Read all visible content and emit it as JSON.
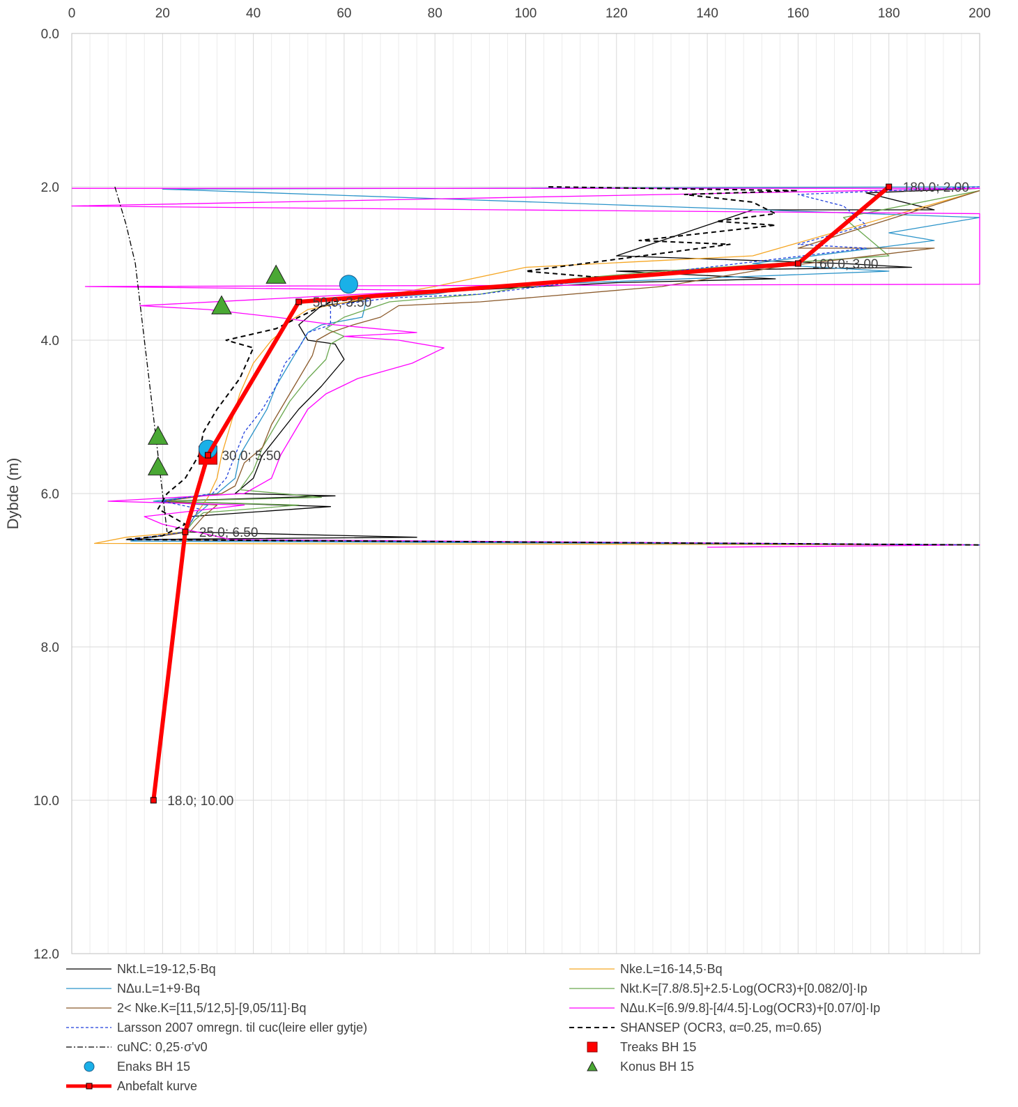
{
  "chart_data": {
    "type": "line",
    "title": "",
    "xlabel": "",
    "ylabel": "Dybde (m)",
    "xlim": [
      0,
      200
    ],
    "ylim": [
      0,
      12
    ],
    "y_inverted": true,
    "x_axis_position": "top",
    "grid": true,
    "x_ticks": [
      "0",
      "20",
      "40",
      "60",
      "80",
      "100",
      "120",
      "140",
      "160",
      "180",
      "200"
    ],
    "y_ticks": [
      "0.0",
      "2.0",
      "4.0",
      "6.0",
      "8.0",
      "10.0",
      "12.0"
    ],
    "legend_position": "bottom",
    "series": [
      {
        "name": "Nkt.L=19-12,5·Bq",
        "color": "#000000",
        "style": "solid",
        "points": [
          [
            200,
            2.02
          ],
          [
            175,
            2.08
          ],
          [
            190,
            2.3
          ],
          [
            150,
            2.3
          ],
          [
            120,
            2.9
          ],
          [
            170,
            3.0
          ],
          [
            185,
            3.05
          ],
          [
            120,
            3.1
          ],
          [
            155,
            3.2
          ],
          [
            120,
            3.25
          ],
          [
            70,
            3.4
          ],
          [
            62,
            3.5
          ],
          [
            55,
            3.55
          ],
          [
            50,
            3.8
          ],
          [
            52,
            4.0
          ],
          [
            58,
            4.05
          ],
          [
            60,
            4.25
          ],
          [
            55,
            4.6
          ],
          [
            50,
            4.9
          ],
          [
            46,
            5.2
          ],
          [
            42,
            5.5
          ],
          [
            40,
            5.8
          ],
          [
            36,
            6.0
          ],
          [
            58,
            6.03
          ],
          [
            20,
            6.1
          ],
          [
            57,
            6.17
          ],
          [
            26,
            6.3
          ],
          [
            25,
            6.5
          ],
          [
            76,
            6.57
          ],
          [
            12,
            6.6
          ],
          [
            200,
            6.67
          ]
        ]
      },
      {
        "name": "Nke.L=16-14,5·Bq",
        "color": "#f5a623",
        "style": "solid",
        "points": [
          [
            200,
            2.05
          ],
          [
            150,
            2.9
          ],
          [
            100,
            3.05
          ],
          [
            80,
            3.3
          ],
          [
            70,
            3.4
          ],
          [
            52,
            3.6
          ],
          [
            48,
            3.75
          ],
          [
            45,
            3.95
          ],
          [
            44,
            4.0
          ],
          [
            40,
            4.3
          ],
          [
            37,
            4.7
          ],
          [
            35,
            5.1
          ],
          [
            33,
            5.5
          ],
          [
            32,
            5.8
          ],
          [
            30,
            6.05
          ],
          [
            27,
            6.3
          ],
          [
            25,
            6.5
          ],
          [
            12,
            6.57
          ],
          [
            5,
            6.65
          ],
          [
            200,
            6.67
          ]
        ]
      },
      {
        "name": "NΔu.L=1+9·Bq",
        "color": "#2a93c9",
        "style": "solid",
        "points": [
          [
            200,
            2.0
          ],
          [
            20,
            2.03
          ],
          [
            200,
            2.4
          ],
          [
            180,
            2.6
          ],
          [
            190,
            2.7
          ],
          [
            150,
            3.0
          ],
          [
            180,
            3.1
          ],
          [
            90,
            3.3
          ],
          [
            80,
            3.4
          ],
          [
            65,
            3.45
          ],
          [
            64,
            3.7
          ],
          [
            55,
            3.8
          ],
          [
            52,
            3.9
          ],
          [
            50,
            4.1
          ],
          [
            48,
            4.3
          ],
          [
            45,
            4.6
          ],
          [
            43,
            4.9
          ],
          [
            40,
            5.2
          ],
          [
            37,
            5.5
          ],
          [
            36,
            5.8
          ],
          [
            32,
            6.0
          ],
          [
            18,
            6.1
          ],
          [
            30,
            6.15
          ],
          [
            27,
            6.3
          ],
          [
            25,
            6.5
          ],
          [
            13,
            6.62
          ],
          [
            200,
            6.67
          ]
        ]
      },
      {
        "name": "Nkt.K=[7.8/8.5]+2.5·Log(OCR3)+[0.082/0]·Ip",
        "color": "#6aa84f",
        "style": "solid",
        "points": [
          [
            200,
            2.05
          ],
          [
            170,
            2.4
          ],
          [
            180,
            2.9
          ],
          [
            130,
            3.1
          ],
          [
            110,
            3.2
          ],
          [
            90,
            3.4
          ],
          [
            70,
            3.5
          ],
          [
            60,
            3.7
          ],
          [
            56,
            3.85
          ],
          [
            60,
            3.95
          ],
          [
            57,
            4.05
          ],
          [
            56,
            4.25
          ],
          [
            52,
            4.5
          ],
          [
            48,
            4.8
          ],
          [
            45,
            5.1
          ],
          [
            42,
            5.4
          ],
          [
            40,
            5.7
          ],
          [
            37,
            5.95
          ],
          [
            55,
            6.05
          ],
          [
            20,
            6.1
          ],
          [
            50,
            6.15
          ],
          [
            29,
            6.25
          ],
          [
            27,
            6.35
          ],
          [
            25,
            6.5
          ],
          [
            14,
            6.6
          ],
          [
            200,
            6.67
          ]
        ]
      },
      {
        "name": "2< Nke.K=[11,5/12,5]-[9,05/11]·Bq",
        "color": "#8b5a2b",
        "style": "solid",
        "points": [
          [
            200,
            2.05
          ],
          [
            160,
            2.8
          ],
          [
            190,
            2.8
          ],
          [
            155,
            3.05
          ],
          [
            130,
            3.3
          ],
          [
            90,
            3.5
          ],
          [
            72,
            3.55
          ],
          [
            68,
            3.7
          ],
          [
            62,
            3.8
          ],
          [
            57,
            3.9
          ],
          [
            54,
            4.0
          ],
          [
            53,
            4.2
          ],
          [
            50,
            4.5
          ],
          [
            47,
            4.8
          ],
          [
            44,
            5.1
          ],
          [
            42,
            5.4
          ],
          [
            38,
            5.6
          ],
          [
            36,
            5.9
          ],
          [
            33,
            6.0
          ],
          [
            20,
            6.1
          ],
          [
            32,
            6.15
          ],
          [
            29,
            6.3
          ],
          [
            26,
            6.5
          ],
          [
            14,
            6.6
          ],
          [
            200,
            6.67
          ]
        ]
      },
      {
        "name": "NΔu.K=[6.9/9.8]-[4/4.5]·Log(OCR3)+[0.07/0]·Ip",
        "color": "#ff00ff",
        "style": "solid",
        "points": [
          [
            0,
            2.02
          ],
          [
            200,
            2.02
          ],
          [
            0,
            2.25
          ],
          [
            95,
            2.3
          ],
          [
            200,
            2.35
          ],
          [
            200,
            3.27
          ],
          [
            3,
            3.3
          ],
          [
            80,
            3.35
          ],
          [
            15,
            3.55
          ],
          [
            30,
            3.6
          ],
          [
            45,
            3.7
          ],
          [
            58,
            3.8
          ],
          [
            76,
            3.9
          ],
          [
            60,
            3.95
          ],
          [
            72,
            4.0
          ],
          [
            82,
            4.1
          ],
          [
            75,
            4.3
          ],
          [
            63,
            4.5
          ],
          [
            56,
            4.7
          ],
          [
            52,
            4.9
          ],
          [
            49,
            5.2
          ],
          [
            46,
            5.5
          ],
          [
            44,
            5.8
          ],
          [
            38,
            6.0
          ],
          [
            8,
            6.1
          ],
          [
            38,
            6.15
          ],
          [
            16,
            6.3
          ],
          [
            20,
            6.4
          ],
          [
            35,
            6.6
          ],
          [
            200,
            6.67
          ],
          [
            140,
            6.7
          ]
        ]
      },
      {
        "name": "Larsson 2007 omregn. til cuc(leire eller gytje)",
        "color": "#1f3fdc",
        "style": "dotted",
        "points": [
          [
            200,
            2.0
          ],
          [
            160,
            2.1
          ],
          [
            170,
            2.25
          ],
          [
            175,
            2.5
          ],
          [
            160,
            2.75
          ],
          [
            175,
            2.8
          ],
          [
            140,
            3.05
          ],
          [
            110,
            3.25
          ],
          [
            90,
            3.4
          ],
          [
            70,
            3.45
          ],
          [
            57,
            3.55
          ],
          [
            57,
            3.8
          ],
          [
            52,
            3.9
          ],
          [
            50,
            4.1
          ],
          [
            47,
            4.3
          ],
          [
            45,
            4.6
          ],
          [
            42,
            4.9
          ],
          [
            38,
            5.2
          ],
          [
            36,
            5.5
          ],
          [
            34,
            5.8
          ],
          [
            31,
            6.0
          ],
          [
            20,
            6.1
          ],
          [
            28,
            6.2
          ],
          [
            25,
            6.5
          ],
          [
            13,
            6.6
          ],
          [
            200,
            6.67
          ]
        ]
      },
      {
        "name": "SHANSEP (OCR3, α=0.25, m=0.65)",
        "color": "#000000",
        "style": "dashed",
        "points": [
          [
            105,
            2.0
          ],
          [
            160,
            2.05
          ],
          [
            135,
            2.1
          ],
          [
            150,
            2.2
          ],
          [
            155,
            2.35
          ],
          [
            142,
            2.45
          ],
          [
            155,
            2.5
          ],
          [
            125,
            2.7
          ],
          [
            145,
            2.75
          ],
          [
            100,
            3.1
          ],
          [
            120,
            3.2
          ],
          [
            80,
            3.35
          ],
          [
            57,
            3.5
          ],
          [
            50,
            3.7
          ],
          [
            45,
            3.85
          ],
          [
            34,
            4.0
          ],
          [
            40,
            4.1
          ],
          [
            37,
            4.5
          ],
          [
            32,
            4.9
          ],
          [
            29,
            5.2
          ],
          [
            28,
            5.5
          ],
          [
            25,
            5.8
          ],
          [
            21,
            6.0
          ],
          [
            19,
            6.2
          ],
          [
            25,
            6.4
          ],
          [
            20,
            6.55
          ],
          [
            12,
            6.6
          ],
          [
            200,
            6.67
          ]
        ]
      },
      {
        "name": "cuNC: 0,25·σ'v0",
        "color": "#000000",
        "style": "dashdot",
        "points": [
          [
            9.5,
            2.0
          ],
          [
            12,
            2.5
          ],
          [
            14,
            3.0
          ],
          [
            16,
            4.0
          ],
          [
            18,
            5.0
          ],
          [
            20,
            6.0
          ],
          [
            21,
            6.5
          ]
        ]
      },
      {
        "name": "Treaks BH 15",
        "color": "#ff0000",
        "marker": "square",
        "points": [
          [
            30,
            5.5
          ]
        ]
      },
      {
        "name": "Enaks BH 15",
        "color": "#1ab0e8",
        "marker": "circle",
        "points": [
          [
            61,
            3.27
          ],
          [
            30,
            5.42
          ]
        ]
      },
      {
        "name": "Konus BH 15",
        "color": "#4aa834",
        "marker": "triangle",
        "points": [
          [
            45,
            3.15
          ],
          [
            33,
            3.55
          ],
          [
            19,
            5.25
          ],
          [
            19,
            5.65
          ]
        ]
      },
      {
        "name": "Anbefalt kurve",
        "color": "#ff0000",
        "style": "solid-thick",
        "marker": "small-square",
        "points": [
          [
            180,
            2.0
          ],
          [
            160,
            3.0
          ],
          [
            50,
            3.5
          ],
          [
            30,
            5.5
          ],
          [
            25,
            6.5
          ],
          [
            18,
            10.0
          ]
        ]
      }
    ],
    "annotations": [
      {
        "text": "180.0; 2.00",
        "x": 180,
        "y": 2.0
      },
      {
        "text": "160.0; 3.00",
        "x": 160,
        "y": 3.0
      },
      {
        "text": "50.0; 3.50",
        "x": 50,
        "y": 3.5
      },
      {
        "text": "30.0; 5.50",
        "x": 30,
        "y": 5.5
      },
      {
        "text": "25.0; 6.50",
        "x": 25,
        "y": 6.5
      },
      {
        "text": "18.0; 10.00",
        "x": 18,
        "y": 10.0
      }
    ]
  }
}
